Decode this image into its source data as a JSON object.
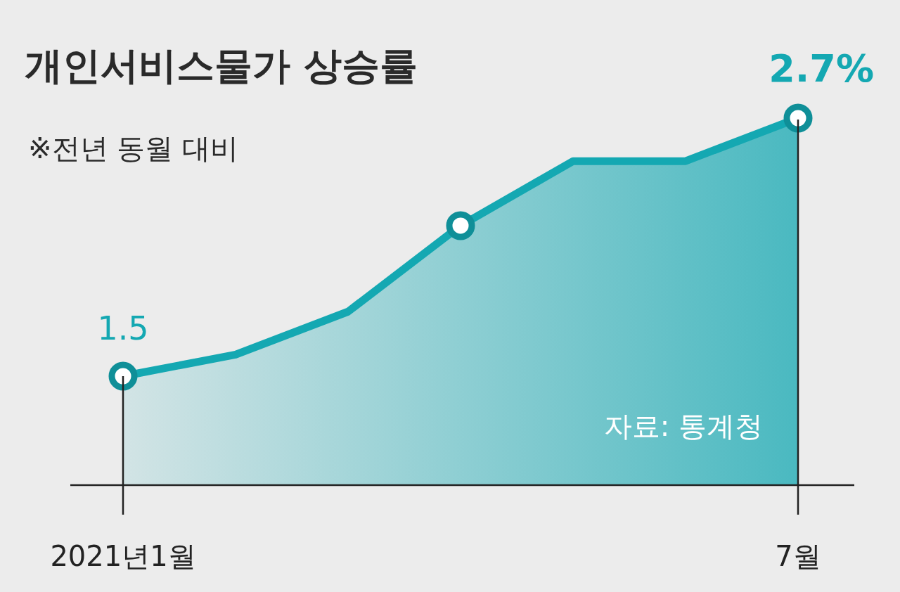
{
  "chart_data": {
    "type": "area",
    "title": "개인서비스물가 상승률",
    "subtitle": "※전년 동월 대비",
    "annotations": [
      "자료: 통계청"
    ],
    "categories": [
      "2021년1월",
      null,
      null,
      null,
      null,
      null,
      "7월"
    ],
    "series": [
      {
        "color": "#14a8b2",
        "values": [
          1.5,
          1.6,
          1.8,
          2.2,
          2.5,
          2.5,
          2.7
        ],
        "value_labels": [
          "1.5",
          null,
          null,
          null,
          null,
          null,
          "2.7%"
        ]
      },
      {
        "type": "scatter",
        "marker": "circle",
        "color": "#0f8f98",
        "values": [
          1.5,
          null,
          null,
          2.2,
          null,
          null,
          2.7
        ]
      }
    ]
  }
}
